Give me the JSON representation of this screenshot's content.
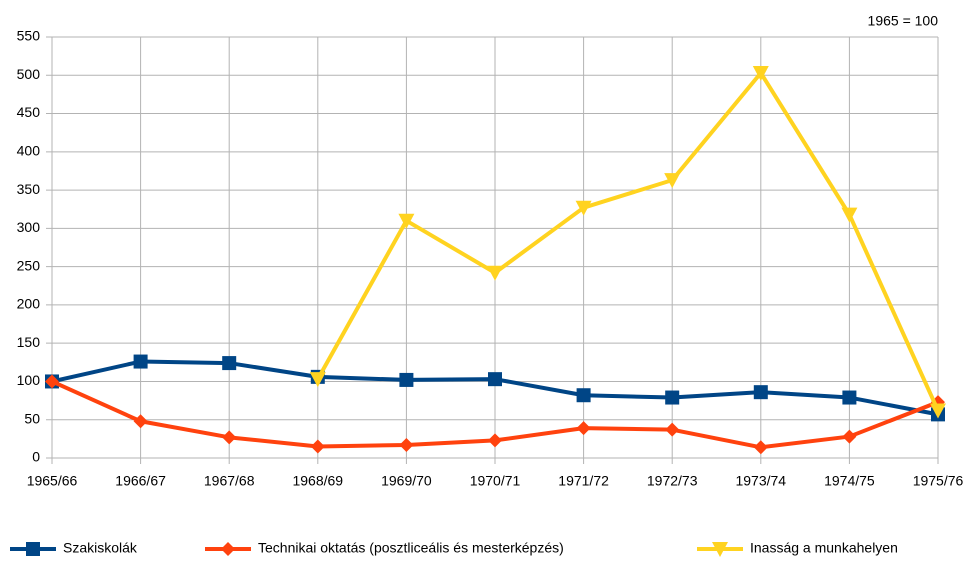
{
  "chart_data": {
    "type": "line",
    "annotation": "1965 = 100",
    "categories": [
      "1965/66",
      "1966/67",
      "1967/68",
      "1968/69",
      "1969/70",
      "1970/71",
      "1971/72",
      "1972/73",
      "1973/74",
      "1974/75",
      "1975/76"
    ],
    "series": [
      {
        "name": "Szakiskolák",
        "color": "#004586",
        "marker": "square",
        "values": [
          100,
          126,
          124,
          106,
          102,
          103,
          82,
          79,
          86,
          79,
          57
        ]
      },
      {
        "name": "Technikai oktatás (posztliceális és mesterképzés)",
        "color": "#ff420e",
        "marker": "diamond",
        "values": [
          100,
          48,
          27,
          15,
          17,
          23,
          39,
          37,
          14,
          28,
          73
        ]
      },
      {
        "name": "Inasság a munkahelyen",
        "color": "#ffd320",
        "marker": "triangle-down",
        "values": [
          null,
          null,
          null,
          103,
          310,
          242,
          327,
          363,
          503,
          318,
          62
        ]
      }
    ],
    "ylim": [
      0,
      550
    ],
    "yticks": [
      0,
      50,
      100,
      150,
      200,
      250,
      300,
      350,
      400,
      450,
      500,
      550
    ],
    "grid": true,
    "legend": "bottom"
  }
}
